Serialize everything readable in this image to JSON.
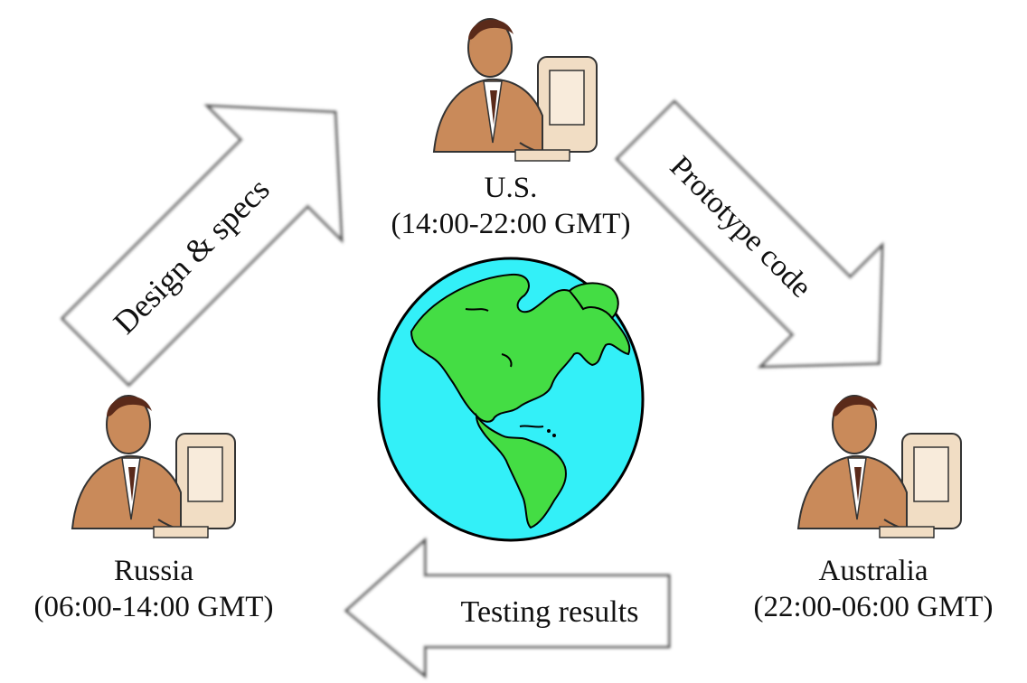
{
  "nodes": {
    "us": {
      "name": "U.S.",
      "hours": "(14:00-22:00 GMT)"
    },
    "russia": {
      "name": "Russia",
      "hours": "(06:00-14:00 GMT)"
    },
    "australia": {
      "name": "Australia",
      "hours": "(22:00-06:00 GMT)"
    }
  },
  "arrows": {
    "design": "Design & specs",
    "prototype": "Prototype code",
    "testing": "Testing results"
  },
  "colors": {
    "ocean": "#33f0f8",
    "land": "#44dd44",
    "skin": "#c98a5a",
    "arrow_fill": "#ffffff",
    "arrow_stroke": "#555555"
  },
  "icons": {
    "worker": "person-at-computer-icon",
    "globe": "globe-icon"
  }
}
